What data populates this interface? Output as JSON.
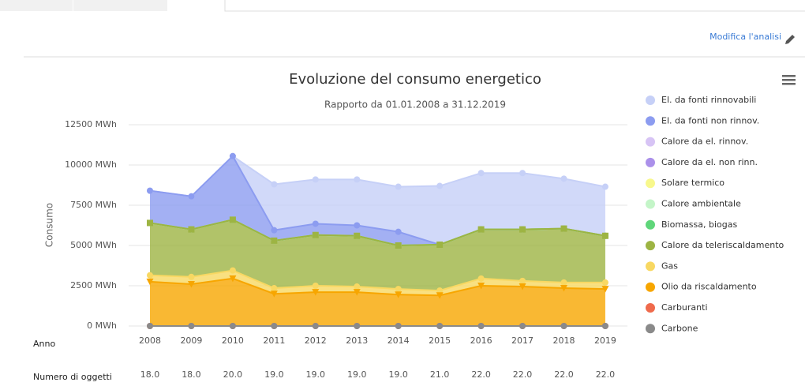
{
  "link": "Modifica l'analisi",
  "chart_data": {
    "type": "area",
    "stacked": true,
    "title": "Evoluzione del consumo energetico",
    "subtitle": "Rapporto da 01.01.2008 a 31.12.2019",
    "y_label": "Consumo",
    "x_label": "Anno",
    "categories": [
      "2008",
      "2009",
      "2010",
      "2011",
      "2012",
      "2013",
      "2014",
      "2015",
      "2016",
      "2017",
      "2018",
      "2019"
    ],
    "ylim": [
      0,
      12500
    ],
    "yticks": [
      {
        "value": 0,
        "label": "0 MWh"
      },
      {
        "value": 2500,
        "label": "2500 MWh"
      },
      {
        "value": 5000,
        "label": "5000 MWh"
      },
      {
        "value": 7500,
        "label": "7500 MWh"
      },
      {
        "value": 10000,
        "label": "10000 MWh"
      },
      {
        "value": 12500,
        "label": "12500 MWh"
      }
    ],
    "grid": true,
    "legend": "right",
    "series": [
      {
        "name": "El. da fonti rinnovabili",
        "color": "#c6d0f7",
        "marker": "circle",
        "values": [
          0,
          0,
          0,
          2850,
          2750,
          2850,
          2800,
          3650,
          3500,
          3500,
          3100,
          3050
        ]
      },
      {
        "name": "El. da fonti non rinnov.",
        "color": "#8c9cf0",
        "marker": "circle",
        "values": [
          2000,
          2050,
          3950,
          650,
          700,
          650,
          850,
          0,
          0,
          0,
          0,
          0
        ]
      },
      {
        "name": "Calore da el. rinnov.",
        "color": "#d7c4f5",
        "marker": "circle",
        "values": [
          0,
          0,
          0,
          0,
          0,
          0,
          0,
          0,
          0,
          0,
          0,
          0
        ]
      },
      {
        "name": "Calore da el. non rinn.",
        "color": "#ab90ea",
        "marker": "circle",
        "values": [
          0,
          0,
          0,
          0,
          0,
          0,
          0,
          0,
          0,
          0,
          0,
          0
        ]
      },
      {
        "name": "Solare termico",
        "color": "#f8f88c",
        "marker": "circle",
        "values": [
          0,
          0,
          0,
          0,
          0,
          0,
          0,
          0,
          0,
          0,
          0,
          0
        ]
      },
      {
        "name": "Calore ambientale",
        "color": "#c4f5c8",
        "marker": "circle",
        "values": [
          0,
          0,
          0,
          0,
          0,
          0,
          0,
          0,
          0,
          0,
          0,
          0
        ]
      },
      {
        "name": "Biomassa, biogas",
        "color": "#5fd67a",
        "marker": "circle",
        "values": [
          0,
          0,
          0,
          0,
          0,
          0,
          0,
          0,
          0,
          0,
          0,
          0
        ]
      },
      {
        "name": "Calore da teleriscaldamento",
        "color": "#9db443",
        "marker": "square",
        "values": [
          3250,
          2950,
          3150,
          2950,
          3150,
          3150,
          2700,
          2850,
          3050,
          3200,
          3350,
          2900
        ]
      },
      {
        "name": "Gas",
        "color": "#f8d862",
        "marker": "circle",
        "values": [
          400,
          450,
          500,
          350,
          400,
          350,
          350,
          300,
          450,
          350,
          350,
          400
        ]
      },
      {
        "name": "Olio da riscaldamento",
        "color": "#f7a600",
        "marker": "triangle-down",
        "values": [
          2750,
          2600,
          2950,
          2000,
          2100,
          2100,
          1950,
          1900,
          2500,
          2450,
          2350,
          2300
        ]
      },
      {
        "name": "Carburanti",
        "color": "#ef6a4c",
        "marker": "circle",
        "values": [
          0,
          0,
          0,
          0,
          0,
          0,
          0,
          0,
          0,
          0,
          0,
          0
        ]
      },
      {
        "name": "Carbone",
        "color": "#8a8a8a",
        "marker": "circle",
        "values": [
          0,
          0,
          0,
          0,
          0,
          0,
          0,
          0,
          0,
          0,
          0,
          0
        ]
      }
    ],
    "objects": {
      "label": "Numero di oggetti",
      "values": [
        18,
        18,
        20,
        19,
        19,
        19,
        19,
        21,
        22,
        22,
        22,
        22
      ],
      "value_labels": [
        "18.0",
        "18.0",
        "20.0",
        "19.0",
        "19.0",
        "19.0",
        "19.0",
        "21.0",
        "22.0",
        "22.0",
        "22.0",
        "22.0"
      ]
    }
  }
}
